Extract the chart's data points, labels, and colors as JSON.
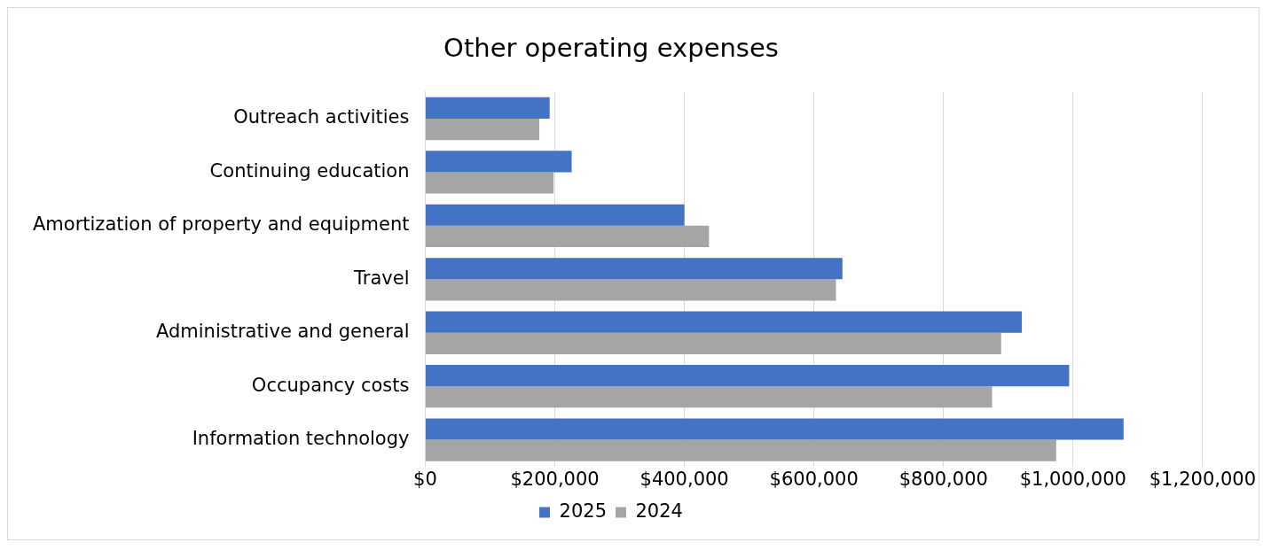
{
  "chart_data": {
    "type": "bar",
    "orientation": "horizontal",
    "title": "Other operating expenses",
    "categories": [
      "Outreach activities",
      "Continuing education",
      "Amortization of property and equipment",
      "Travel",
      "Administrative and general",
      "Occupancy costs",
      "Information technology"
    ],
    "series": [
      {
        "name": "2025",
        "color": "#4472c4",
        "values": [
          192000,
          226000,
          400000,
          644000,
          921000,
          994000,
          1078000
        ]
      },
      {
        "name": "2024",
        "color": "#a5a5a5",
        "values": [
          176000,
          198000,
          438000,
          634000,
          889000,
          875000,
          974000
        ]
      }
    ],
    "xlim": [
      0,
      1200000
    ],
    "xticks": [
      {
        "value": 0,
        "label": "$0"
      },
      {
        "value": 200000,
        "label": "$200,000"
      },
      {
        "value": 400000,
        "label": "$400,000"
      },
      {
        "value": 600000,
        "label": "$600,000"
      },
      {
        "value": 800000,
        "label": "$800,000"
      },
      {
        "value": 1000000,
        "label": "$1,000,000"
      },
      {
        "value": 1200000,
        "label": "$1,200,000"
      }
    ],
    "grid": "x",
    "legend": "bottom"
  }
}
